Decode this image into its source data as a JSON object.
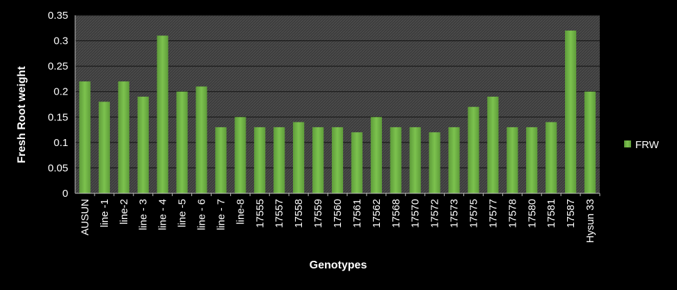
{
  "chart_data": {
    "type": "bar",
    "title": "",
    "xlabel": "Genotypes",
    "ylabel": "Fresh Root  weight",
    "ylim": [
      0,
      0.35
    ],
    "yticks": [
      "0",
      "0.05",
      "0.1",
      "0.15",
      "0.2",
      "0.25",
      "0.3",
      "0.35"
    ],
    "grid": true,
    "legend_position": "right",
    "categories": [
      "AUSUN",
      "line -1",
      "line-2",
      "line - 3",
      "line - 4",
      "line -5",
      "line - 6",
      "line - 7",
      "line-8",
      "17555",
      "17557",
      "17558",
      "17559",
      "17560",
      "17561",
      "17562",
      "17568",
      "17570",
      "17572",
      "17573",
      "17575",
      "17577",
      "17578",
      "17580",
      "17581",
      "17587",
      "Hysun 33"
    ],
    "series": [
      {
        "name": "FRW",
        "color": "#70ad47",
        "values": [
          0.22,
          0.18,
          0.22,
          0.19,
          0.31,
          0.2,
          0.21,
          0.13,
          0.15,
          0.13,
          0.13,
          0.14,
          0.13,
          0.13,
          0.12,
          0.15,
          0.13,
          0.13,
          0.12,
          0.13,
          0.17,
          0.19,
          0.13,
          0.13,
          0.14,
          0.32,
          0.2
        ]
      }
    ]
  }
}
